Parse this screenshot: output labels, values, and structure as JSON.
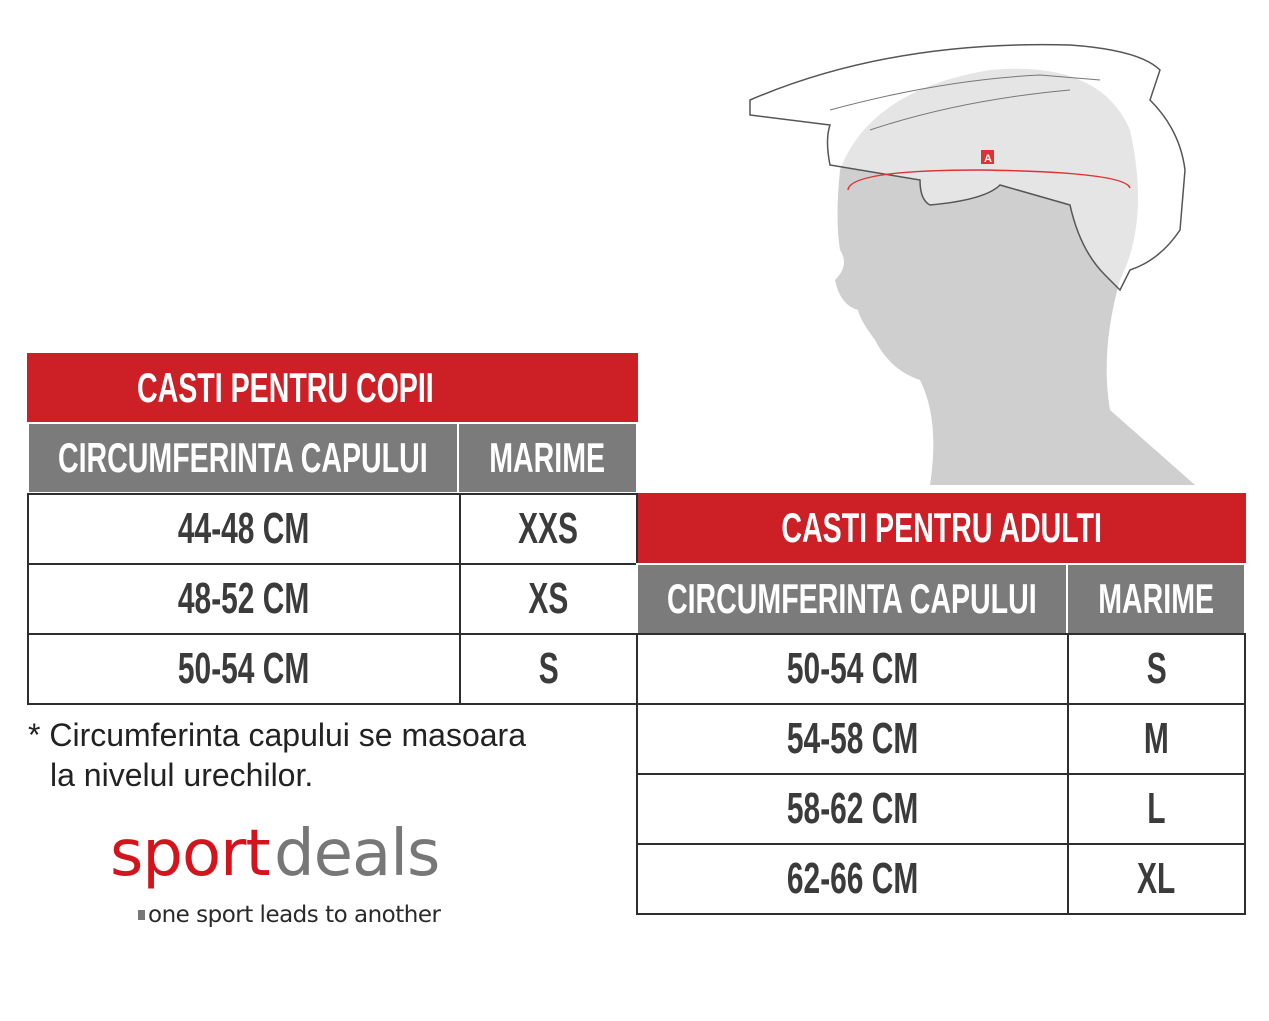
{
  "kids_table": {
    "title": "CASTI PENTRU COPII",
    "headers": [
      "CIRCUMFERINTA CAPULUI",
      "MARIME"
    ],
    "rows": [
      [
        "44-48 CM",
        "XXS"
      ],
      [
        "48-52 CM",
        "XS"
      ],
      [
        "50-54 CM",
        "S"
      ]
    ]
  },
  "adult_table": {
    "title": "CASTI PENTRU ADULTI",
    "headers": [
      "CIRCUMFERINTA CAPULUI",
      "MARIME"
    ],
    "rows": [
      [
        "50-54 CM",
        "S"
      ],
      [
        "54-58 CM",
        "M"
      ],
      [
        "58-62 CM",
        "L"
      ],
      [
        "62-66 CM",
        "XL"
      ]
    ]
  },
  "note": {
    "line1": "* Circumferinta capului se masoara",
    "line2": "la nivelul urechilor."
  },
  "logo": {
    "word1": "sport",
    "word2": "deals",
    "tagline": "one sport leads to another"
  },
  "illustration": {
    "marker_label": "A"
  },
  "colors": {
    "header_red": "#cc1f26",
    "subheader_gray": "#7b7b7b",
    "logo_red": "#d4141c",
    "logo_gray": "#777777"
  }
}
